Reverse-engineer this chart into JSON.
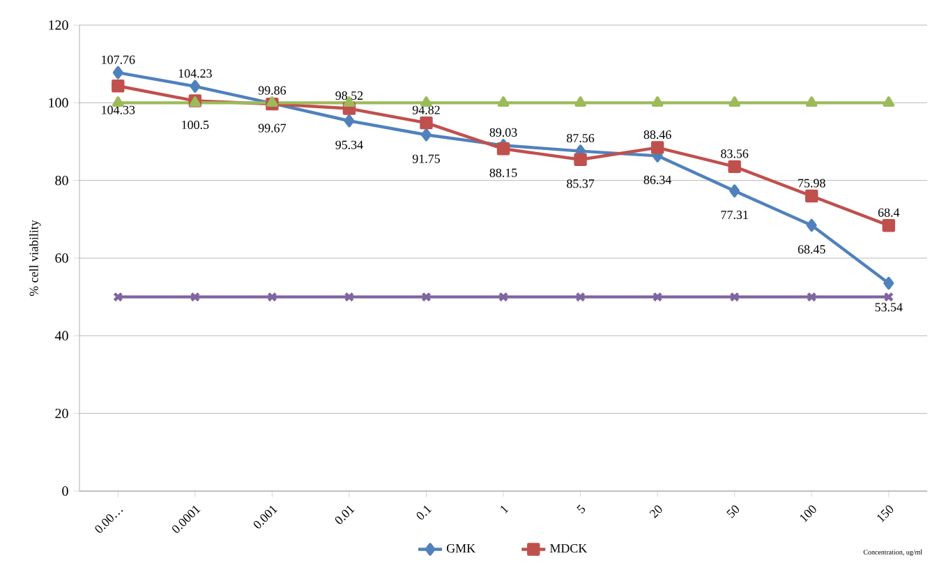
{
  "chart_data": {
    "type": "line",
    "ylabel": "% cell viability",
    "xlabel": "Concentration, ug/ml",
    "categories": [
      "0.00…",
      "0.0001",
      "0.001",
      "0.01",
      "0.1",
      "1",
      "5",
      "20",
      "50",
      "100",
      "150"
    ],
    "ylim": [
      0,
      120
    ],
    "yticks": [
      0,
      20,
      40,
      60,
      80,
      100,
      120
    ],
    "grid": "y",
    "legend": "bottom",
    "series": [
      {
        "name": "GMK",
        "color": "#4f81bd",
        "marker": "diamond",
        "values": [
          107.76,
          104.23,
          99.86,
          95.34,
          91.75,
          89.03,
          87.56,
          86.34,
          77.31,
          68.45,
          53.54
        ],
        "value_labels": [
          "107.76",
          "104.23",
          "99.86",
          "95.34",
          "91.75",
          "89.03",
          "87.56",
          "86.34",
          "77.31",
          "68.45",
          "53.54"
        ]
      },
      {
        "name": "MDCK",
        "color": "#c0504d",
        "marker": "square",
        "values": [
          104.33,
          100.5,
          99.67,
          98.52,
          94.82,
          88.15,
          85.37,
          88.46,
          83.56,
          75.98,
          68.4
        ],
        "value_labels": [
          "104.33",
          "100.5",
          "99.67",
          "98.52",
          "94.82",
          "88.15",
          "85.37",
          "88.46",
          "83.56",
          "75.98",
          "68.4"
        ]
      },
      {
        "color": "#9bbb59",
        "marker": "triangle",
        "values": [
          100,
          100,
          100,
          100,
          100,
          100,
          100,
          100,
          100,
          100,
          100
        ]
      },
      {
        "color": "#8064a2",
        "marker": "cross",
        "values": [
          50,
          50,
          50,
          50,
          50,
          50,
          50,
          50,
          50,
          50,
          50
        ]
      }
    ]
  }
}
